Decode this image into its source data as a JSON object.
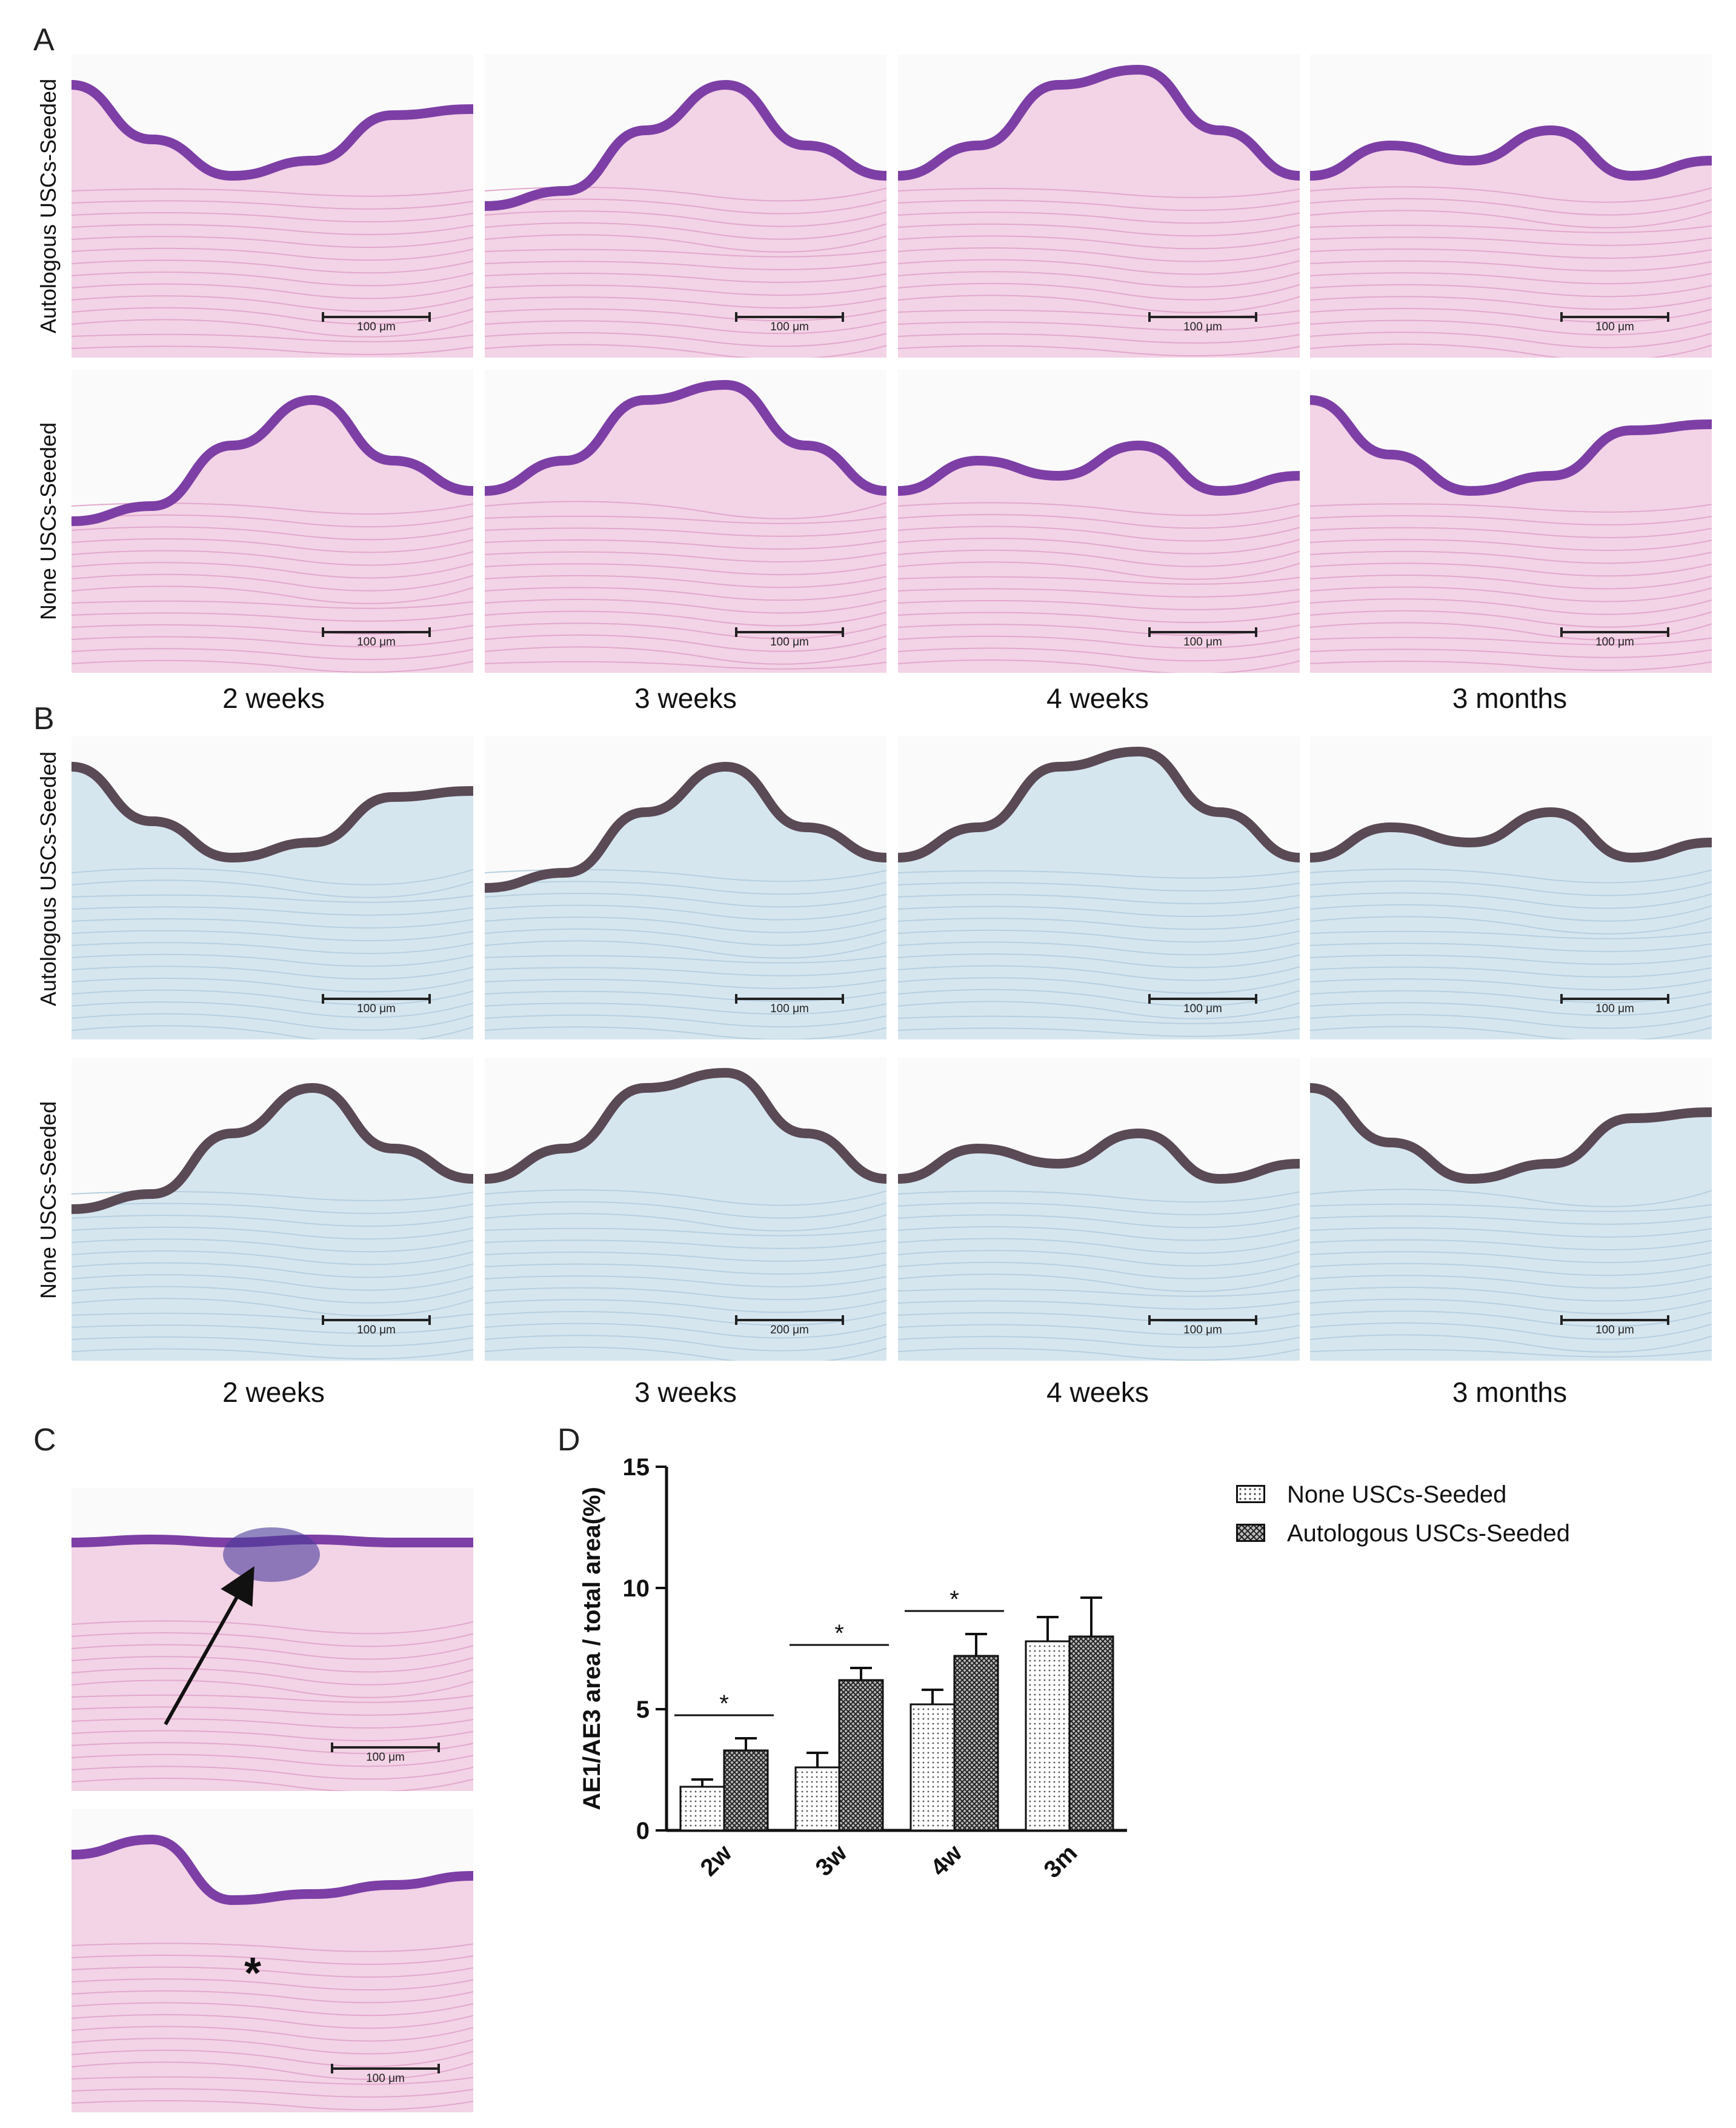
{
  "panels": {
    "A": {
      "letter": "A"
    },
    "B": {
      "letter": "B"
    },
    "C": {
      "letter": "C"
    },
    "D": {
      "letter": "D"
    }
  },
  "row_labels": {
    "autologous": "Autologous USCs-Seeded",
    "none": "None USCs-Seeded"
  },
  "time_labels": [
    "2 weeks",
    "3 weeks",
    "4 weeks",
    "3 months"
  ],
  "micrographs": {
    "A": [
      {
        "row": "autologous",
        "scale": "100 μm"
      },
      {
        "row": "autologous",
        "scale": "100 μm"
      },
      {
        "row": "autologous",
        "scale": "100 μm"
      },
      {
        "row": "autologous",
        "scale": "100 μm"
      },
      {
        "row": "none",
        "scale": "100 μm"
      },
      {
        "row": "none",
        "scale": "100 μm"
      },
      {
        "row": "none",
        "scale": "100 μm"
      },
      {
        "row": "none",
        "scale": "100 μm"
      }
    ],
    "B": [
      {
        "row": "autologous",
        "scale": "100 μm"
      },
      {
        "row": "autologous",
        "scale": "100 μm"
      },
      {
        "row": "autologous",
        "scale": "100 μm"
      },
      {
        "row": "autologous",
        "scale": "100 μm"
      },
      {
        "row": "none",
        "scale": "100 μm"
      },
      {
        "row": "none",
        "scale": "200 μm"
      },
      {
        "row": "none",
        "scale": "100 μm"
      },
      {
        "row": "none",
        "scale": "100 μm"
      }
    ],
    "C": [
      {
        "scale": "100 μm",
        "marker": "arrow"
      },
      {
        "scale": "100 μm",
        "marker": "*"
      }
    ]
  },
  "stain_colors": {
    "he_background": "#f3d3e6",
    "he_epithelium": "#7d3fa6",
    "ihc_background": "#d6e6ef",
    "ihc_epithelium": "#5a4a55",
    "blank": "#fafafa"
  },
  "chart_data": {
    "type": "bar",
    "ylabel": "AE1/AE3 area / total area(%)",
    "xlabel": "",
    "categories": [
      "2w",
      "3w",
      "4w",
      "3m"
    ],
    "ylim": [
      0,
      15
    ],
    "yticks": [
      0,
      5,
      10,
      15
    ],
    "series": [
      {
        "name": "None USCs-Seeded",
        "pattern": "dotted",
        "values": [
          1.8,
          2.6,
          5.2,
          7.8
        ],
        "errors": [
          0.3,
          0.6,
          0.6,
          1.0
        ]
      },
      {
        "name": "Autologous USCs-Seeded",
        "pattern": "crosshatch",
        "values": [
          3.3,
          6.2,
          7.2,
          8.0
        ],
        "errors": [
          0.5,
          0.5,
          0.9,
          1.6
        ]
      }
    ],
    "significance": [
      {
        "category": "2w",
        "label": "*"
      },
      {
        "category": "3w",
        "label": "*"
      },
      {
        "category": "4w",
        "label": "*"
      }
    ],
    "legend_position": "top-right"
  }
}
